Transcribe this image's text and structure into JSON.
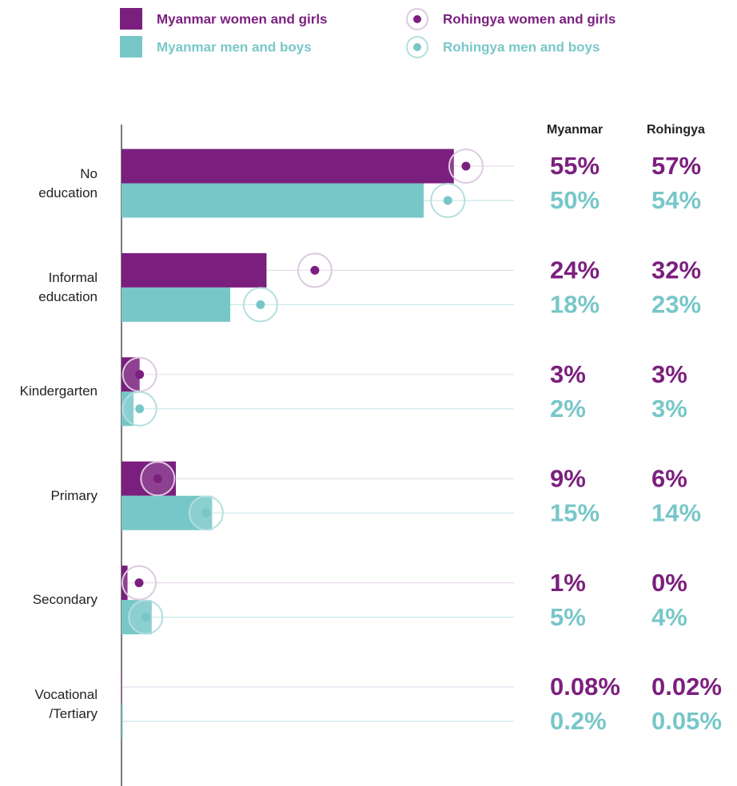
{
  "chart_data": {
    "type": "bar_dot",
    "categories": [
      "No\neducation",
      "Informal\neducation",
      "Kindergarten",
      "Primary",
      "Secondary",
      "Vocational\n/Tertiary"
    ],
    "columns": [
      "Myanmar",
      "Rohingya"
    ],
    "series": [
      {
        "name": "Myanmar women and girls",
        "color": "#7b1f7e",
        "marker": "bar",
        "values": [
          55,
          24,
          3,
          9,
          1,
          0.08
        ],
        "value_labels": [
          "55%",
          "24%",
          "3%",
          "9%",
          "1%",
          "0.08%"
        ]
      },
      {
        "name": "Myanmar men and boys",
        "color": "#78c7c8",
        "marker": "bar",
        "values": [
          50,
          18,
          2,
          15,
          5,
          0.2
        ],
        "value_labels": [
          "50%",
          "18%",
          "2%",
          "15%",
          "5%",
          "0.2%"
        ]
      },
      {
        "name": "Rohingya women and girls",
        "color": "#7b1f7e",
        "marker": "dot",
        "values": [
          57,
          32,
          3,
          6,
          0,
          0.02
        ],
        "value_labels": [
          "57%",
          "32%",
          "3%",
          "6%",
          "0%",
          "0.02%"
        ]
      },
      {
        "name": "Rohingya men and boys",
        "color": "#78c7c8",
        "marker": "dot",
        "values": [
          54,
          23,
          3,
          14,
          4,
          0.05
        ],
        "value_labels": [
          "54%",
          "23%",
          "3%",
          "14%",
          "4%",
          "0.05%"
        ]
      }
    ]
  }
}
